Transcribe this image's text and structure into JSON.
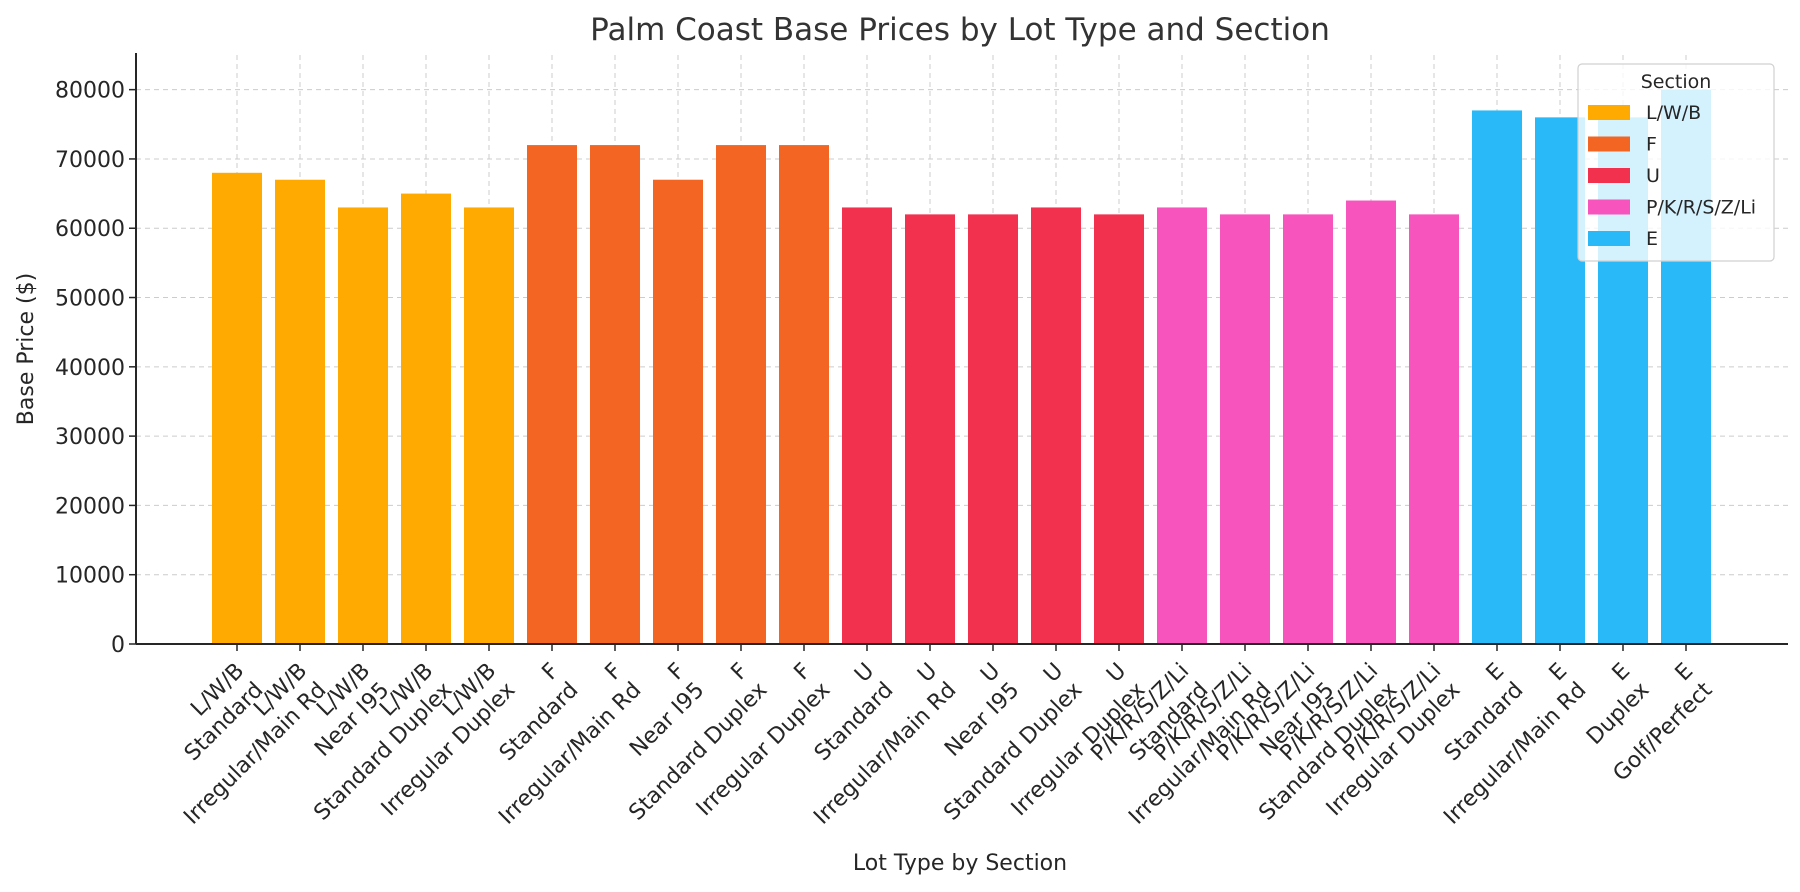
{
  "chart_data": {
    "type": "bar",
    "title": "Palm Coast Base Prices by Lot Type and Section",
    "xlabel": "Lot Type by Section",
    "ylabel": "Base Price ($)",
    "ylim": [
      0,
      85000
    ],
    "yticks": [
      0,
      10000,
      20000,
      30000,
      40000,
      50000,
      60000,
      70000,
      80000
    ],
    "grid": true,
    "legend": {
      "title": "Section",
      "placement": "top-right"
    },
    "series": [
      {
        "name": "L/W/B",
        "color": "#FFAA00",
        "categories": [
          "L/W/B\nStandard",
          "L/W/B\nIrregular/Main Rd",
          "L/W/B\nNear I95",
          "L/W/B\nStandard Duplex",
          "L/W/B\nIrregular Duplex"
        ],
        "values": [
          68000,
          67000,
          63000,
          65000,
          63000
        ]
      },
      {
        "name": "F",
        "color": "#F26522",
        "categories": [
          "F\nStandard",
          "F\nIrregular/Main Rd",
          "F\nNear I95",
          "F\nStandard Duplex",
          "F\nIrregular Duplex"
        ],
        "values": [
          72000,
          72000,
          67000,
          72000,
          72000
        ]
      },
      {
        "name": "U",
        "color": "#F2314F",
        "categories": [
          "U\nStandard",
          "U\nIrregular/Main Rd",
          "U\nNear I95",
          "U\nStandard Duplex",
          "U\nIrregular Duplex"
        ],
        "values": [
          63000,
          62000,
          62000,
          63000,
          62000
        ]
      },
      {
        "name": "P/K/R/S/Z/Li",
        "color": "#F754BE",
        "categories": [
          "P/K/R/S/Z/Li\nStandard",
          "P/K/R/S/Z/Li\nIrregular/Main Rd",
          "P/K/R/S/Z/Li\nNear I95",
          "P/K/R/S/Z/Li\nStandard Duplex",
          "P/K/R/S/Z/Li\nIrregular Duplex"
        ],
        "values": [
          63000,
          62000,
          62000,
          64000,
          62000
        ]
      },
      {
        "name": "E",
        "color": "#29B9F8",
        "categories": [
          "E\nStandard",
          "E\nIrregular/Main Rd",
          "E\nDuplex",
          "E\nGolf/Perfect"
        ],
        "values": [
          77000,
          76000,
          76000,
          80000
        ]
      }
    ]
  }
}
